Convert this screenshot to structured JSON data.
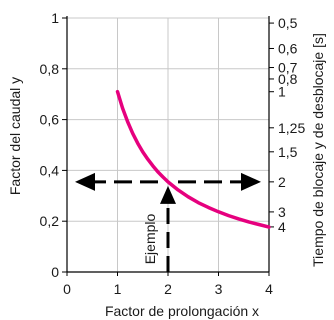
{
  "chart_data": {
    "type": "line",
    "title": "",
    "xlabel": "Factor de prolongación x",
    "ylabel": "Factor del caudal y",
    "ylabel_right": "Tiempo de blocaje y de desblocaje [s]",
    "xlim": [
      0,
      4
    ],
    "ylim": [
      0,
      1
    ],
    "x_ticks": [
      0,
      1,
      2,
      3,
      4
    ],
    "x_tick_labels": [
      "0",
      "1",
      "2",
      "3",
      "4"
    ],
    "y_ticks": [
      0,
      0.2,
      0.4,
      0.6,
      0.8,
      1
    ],
    "y_tick_labels": [
      "0",
      "0,2",
      "0,4",
      "0,6",
      "0,8",
      "1"
    ],
    "right_ticks": [
      {
        "y": 0.7098,
        "label": "1"
      },
      {
        "y": 0.5677,
        "label": "1,25"
      },
      {
        "y": 0.4732,
        "label": "1,5"
      },
      {
        "y": 0.3549,
        "label": "2"
      },
      {
        "y": 0.2366,
        "label": "3"
      },
      {
        "y": 0.1775,
        "label": "4"
      },
      {
        "y": 1.4196,
        "label": "0,5"
      },
      {
        "y": 1.183,
        "label": "0,6"
      },
      {
        "y": 1.014,
        "label": "0,7"
      },
      {
        "y": 0.8873,
        "label": "0,8"
      }
    ],
    "grid": true,
    "series": [
      {
        "color": "#e6007e",
        "x": [
          1,
          1.1,
          1.2,
          1.3,
          1.4,
          1.5,
          1.6,
          1.7,
          1.8,
          1.9,
          2,
          2.2,
          2.4,
          2.6,
          2.8,
          3,
          3.2,
          3.4,
          3.6,
          3.8,
          4
        ],
        "values": [
          0.71,
          0.645,
          0.592,
          0.546,
          0.507,
          0.473,
          0.444,
          0.418,
          0.394,
          0.374,
          0.355,
          0.323,
          0.296,
          0.273,
          0.254,
          0.237,
          0.222,
          0.209,
          0.197,
          0.187,
          0.177
        ]
      }
    ],
    "annotation": {
      "text": "Ejemplo",
      "x": 2,
      "y": 0.355
    }
  }
}
